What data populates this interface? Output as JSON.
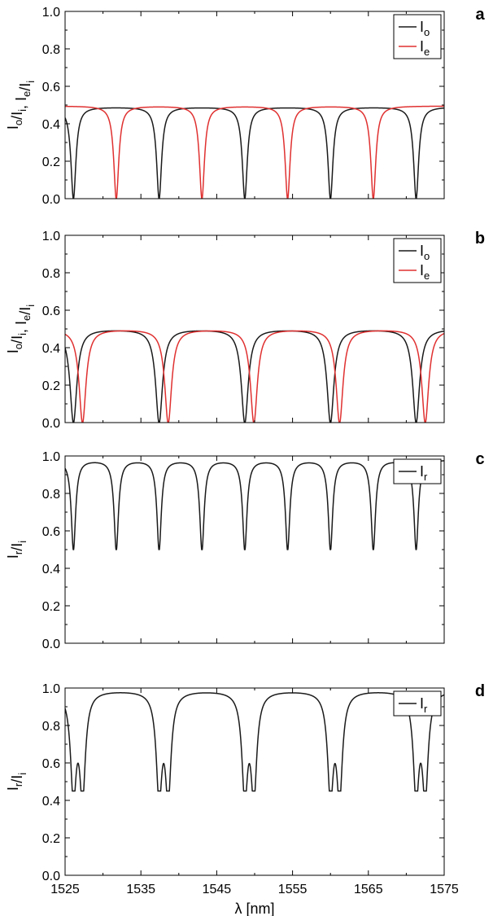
{
  "chart_data": [
    {
      "panel": "a",
      "type": "line",
      "xlim": [
        1525,
        1575
      ],
      "ylim": [
        0.0,
        1.0
      ],
      "ylabel": "I_o/I_i, I_e/I_i",
      "xlabel": "",
      "xticks": [],
      "yticks": [
        "0.0",
        "0.2",
        "0.4",
        "0.6",
        "0.8",
        "1.0"
      ],
      "grid": false,
      "legend_position": "top-right",
      "series": [
        {
          "name": "I_o",
          "base": "I",
          "sub": "o",
          "color": "#1a1a1a",
          "max": 0.49,
          "min": 0.0,
          "dips": [
            1526.1,
            1537.4,
            1548.7,
            1560.0,
            1571.3
          ],
          "width": 0.4
        },
        {
          "name": "I_e",
          "base": "I",
          "sub": "e",
          "color": "#e03030",
          "max": 0.495,
          "min": 0.0,
          "dips": [
            1531.75,
            1543.05,
            1554.35,
            1565.65
          ],
          "width": 0.4
        }
      ]
    },
    {
      "panel": "b",
      "type": "line",
      "xlim": [
        1525,
        1575
      ],
      "ylim": [
        0.0,
        1.0
      ],
      "ylabel": "I_o/I_i, I_e/I_i",
      "xlabel": "",
      "xticks": [],
      "yticks": [
        "0.0",
        "0.2",
        "0.4",
        "0.6",
        "0.8",
        "1.0"
      ],
      "grid": false,
      "legend_position": "top-right",
      "series": [
        {
          "name": "I_o",
          "base": "I",
          "sub": "o",
          "color": "#1a1a1a",
          "max": 0.5,
          "min": 0.0,
          "dips": [
            1526.1,
            1537.4,
            1548.7,
            1560.0,
            1571.3
          ],
          "width": 0.55
        },
        {
          "name": "I_e",
          "base": "I",
          "sub": "e",
          "color": "#e03030",
          "max": 0.5,
          "min": 0.0,
          "dips": [
            1527.3,
            1538.6,
            1549.9,
            1561.2,
            1572.5
          ],
          "width": 0.55
        }
      ]
    },
    {
      "panel": "c",
      "type": "line",
      "xlim": [
        1525,
        1575
      ],
      "ylim": [
        0.0,
        1.0
      ],
      "ylabel": "I_r/I_i",
      "xlabel": "",
      "xticks": [],
      "yticks": [
        "0.0",
        "0.2",
        "0.4",
        "0.6",
        "0.8",
        "1.0"
      ],
      "grid": false,
      "legend_position": "top-right",
      "series": [
        {
          "name": "I_r",
          "base": "I",
          "sub": "r",
          "color": "#1a1a1a",
          "max": 0.98,
          "min": 0.5,
          "dips": [
            1526.1,
            1531.75,
            1537.4,
            1543.05,
            1548.7,
            1554.35,
            1560.0,
            1565.65,
            1571.3
          ],
          "width": 0.35
        }
      ]
    },
    {
      "panel": "d",
      "type": "line",
      "xlim": [
        1525,
        1575
      ],
      "ylim": [
        0.0,
        1.0
      ],
      "ylabel": "I_r/I_i",
      "xlabel": "λ [nm]",
      "xticks": [
        "1525",
        "1535",
        "1545",
        "1555",
        "1565",
        "1575"
      ],
      "xtick_values": [
        1525,
        1535,
        1545,
        1555,
        1565,
        1575
      ],
      "yticks": [
        "0.0",
        "0.2",
        "0.4",
        "0.6",
        "0.8",
        "1.0"
      ],
      "grid": false,
      "legend_position": "top-right",
      "series": [
        {
          "name": "I_r",
          "base": "I",
          "sub": "r",
          "color": "#1a1a1a",
          "max": 0.99,
          "min": 0.45,
          "dips": [
            1526.1,
            1527.3,
            1537.4,
            1538.6,
            1548.7,
            1549.9,
            1560.0,
            1561.2,
            1571.3,
            1572.5
          ],
          "width": 0.45
        }
      ]
    }
  ]
}
